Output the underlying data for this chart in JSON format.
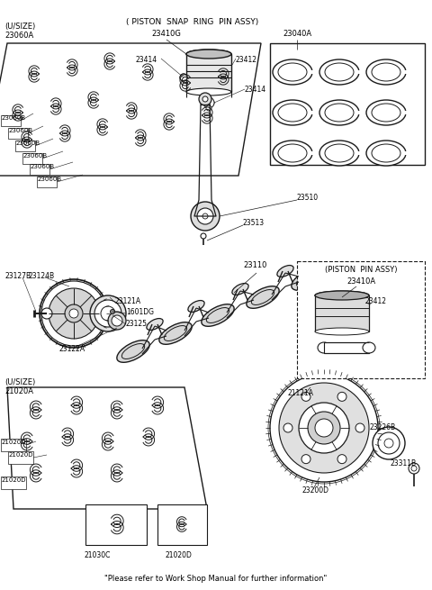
{
  "bg_color": "#ffffff",
  "line_color": "#1a1a1a",
  "footer_text": "\"Please refer to Work Shop Manual for further information\"",
  "labels": {
    "usize_top": "(U/SIZE)",
    "part_23060A": "23060A",
    "part_23060B_1": "23060B",
    "part_23060B_2": "23060B",
    "part_23060B_3": "23060B",
    "part_23060B_4": "23060B",
    "part_23060B_5": "23060B",
    "part_23060B_6": "23060B",
    "piston_snap_title": "( PISTON  SNAP  RING  PIN ASSY)",
    "part_23410G": "23410G",
    "part_23040A": "23040A",
    "part_23414_1": "23414",
    "part_23412_1": "23412",
    "part_23414_2": "23414",
    "part_23510": "23510",
    "part_23513": "23513",
    "part_23127B": "23127B",
    "part_23124B": "23124B",
    "part_23110": "23110",
    "part_1601DG": "1601DG",
    "part_23121A": "23121A",
    "part_23125": "23125",
    "part_23122A": "23122A",
    "piston_pin_title": "(PISTON  PIN ASSY)",
    "part_23410A": "23410A",
    "part_23412_2": "23412",
    "usize_bottom": "(U/SIZE)",
    "part_21020A": "21020A",
    "part_21020D_1": "21020D",
    "part_21020D_2": "21020D",
    "part_21020D_3": "21020D",
    "part_21020D_4": "21020D",
    "part_21030C": "21030C",
    "part_21121A": "21121A",
    "part_23200D": "23200D",
    "part_23226B": "23226B",
    "part_23311B": "23311B"
  }
}
